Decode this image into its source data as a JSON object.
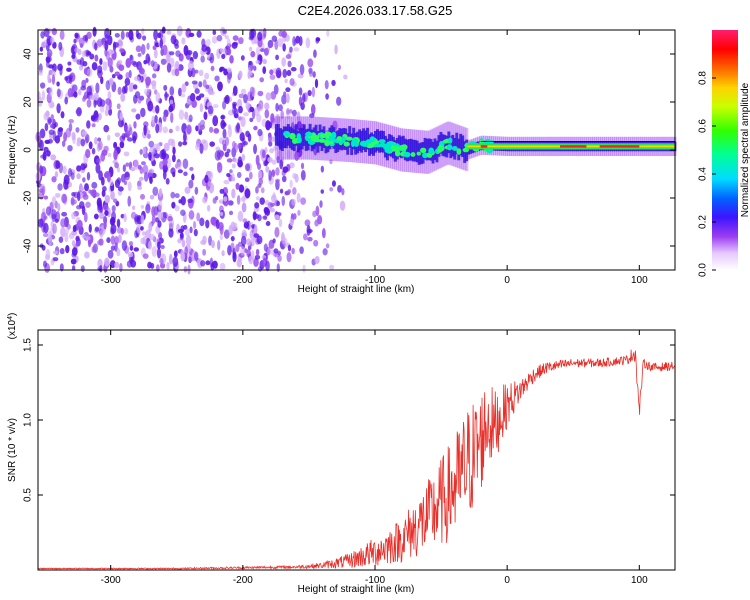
{
  "title": "C2E4.2026.033.17.58.G25",
  "colors": {
    "snr_line": "#e8302a",
    "axes": "#000000",
    "background": "#ffffff"
  },
  "chart_data": [
    {
      "type": "heatmap",
      "name": "spectrogram",
      "title": "C2E4.2026.033.17.58.G25",
      "xlabel": "Height of straight line (km)",
      "ylabel": "Frequency (Hz)",
      "xlim": [
        -355,
        127
      ],
      "ylim": [
        -50,
        50
      ],
      "xticks": [
        -300,
        -200,
        -100,
        0,
        100
      ],
      "yticks": [
        -40,
        -20,
        0,
        20,
        40
      ],
      "xtick_labels": [
        "-300",
        "-200",
        "-100",
        "0",
        "100"
      ],
      "ytick_labels": [
        "-40",
        "-20",
        "0",
        "20",
        "40"
      ],
      "signal_band": {
        "description_points": [
          {
            "x": -175,
            "y": 5
          },
          {
            "x": -150,
            "y": 5
          },
          {
            "x": -120,
            "y": 4
          },
          {
            "x": -100,
            "y": 3
          },
          {
            "x": -80,
            "y": 0
          },
          {
            "x": -60,
            "y": -1
          },
          {
            "x": -45,
            "y": 3
          },
          {
            "x": -30,
            "y": 0
          },
          {
            "x": -20,
            "y": 2
          },
          {
            "x": 0,
            "y": 1.5
          },
          {
            "x": 50,
            "y": 1.5
          },
          {
            "x": 100,
            "y": 1.5
          },
          {
            "x": 127,
            "y": 1.5
          }
        ],
        "noise_extent": [
          -355,
          -140
        ]
      },
      "colorbar": {
        "label": "Normalized spectral amplitude",
        "ticks": [
          0.0,
          0.2,
          0.4,
          0.6,
          0.8
        ],
        "tick_labels": [
          "0.0",
          "0.2",
          "0.4",
          "0.6",
          "0.8"
        ],
        "range": [
          0,
          1
        ]
      }
    },
    {
      "type": "line",
      "name": "snr",
      "xlabel": "Height of straight line (km)",
      "ylabel": "SNR (10 * v/v)",
      "multiplier_label": "(x10",
      "multiplier_exponent": "4",
      "multiplier_suffix": ")",
      "xlim": [
        -355,
        127
      ],
      "ylim": [
        0,
        1.6
      ],
      "xticks": [
        -300,
        -200,
        -100,
        0,
        100
      ],
      "yticks": [
        0.5,
        1.0,
        1.5
      ],
      "xtick_labels": [
        "-300",
        "-200",
        "-100",
        "0",
        "100"
      ],
      "ytick_labels": [
        "0.5",
        "1.0",
        "1.5"
      ],
      "series": [
        {
          "name": "SNR",
          "x": [
            -355,
            -250,
            -160,
            -140,
            -120,
            -100,
            -80,
            -60,
            -50,
            -40,
            -30,
            -20,
            -15,
            -10,
            0,
            10,
            20,
            30,
            50,
            70,
            90,
            97,
            100,
            103,
            110,
            127
          ],
          "y": [
            0.01,
            0.01,
            0.02,
            0.03,
            0.06,
            0.12,
            0.2,
            0.35,
            0.45,
            0.55,
            0.7,
            0.85,
            1.0,
            0.95,
            1.1,
            1.2,
            1.3,
            1.35,
            1.38,
            1.38,
            1.4,
            1.45,
            1.05,
            1.38,
            1.35,
            1.36
          ],
          "noise_amplitude": [
            0.003,
            0.004,
            0.01,
            0.02,
            0.05,
            0.1,
            0.15,
            0.25,
            0.3,
            0.35,
            0.4,
            0.35,
            0.3,
            0.25,
            0.15,
            0.08,
            0.05,
            0.04,
            0.03,
            0.03,
            0.03,
            0.06,
            0.05,
            0.03,
            0.03,
            0.03
          ]
        }
      ]
    }
  ]
}
